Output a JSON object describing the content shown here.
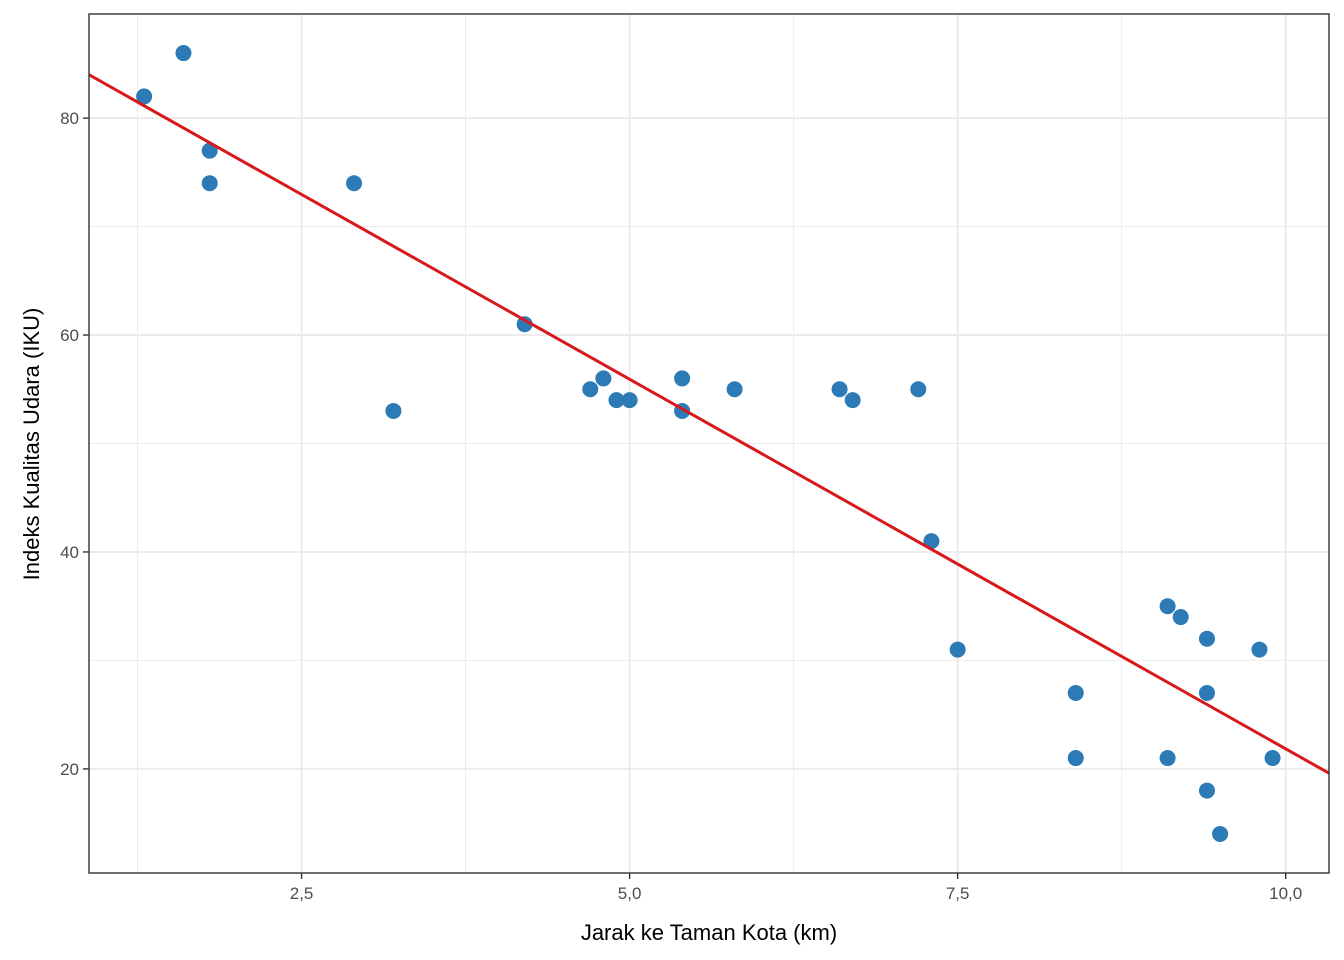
{
  "chart_data": {
    "type": "scatter",
    "title": "",
    "xlabel": "Jarak ke Taman Kota (km)",
    "ylabel": "Indeks Kualitas Udara (IKU)",
    "xlim": [
      0.88,
      10.33
    ],
    "ylim": [
      10.4,
      89.6
    ],
    "x_ticks": [
      2.5,
      5.0,
      7.5,
      10.0
    ],
    "x_tick_labels": [
      "2,5",
      "5,0",
      "7,5",
      "10,0"
    ],
    "y_ticks": [
      20,
      40,
      60,
      80
    ],
    "y_tick_labels": [
      "20",
      "40",
      "60",
      "80"
    ],
    "grid": true,
    "legend": "none",
    "point_color": "#2c7bb6",
    "line_color": "#d7191c",
    "series": [
      {
        "name": "observations",
        "type": "scatter",
        "points": [
          {
            "x": 1.3,
            "y": 82
          },
          {
            "x": 1.6,
            "y": 86
          },
          {
            "x": 1.8,
            "y": 77
          },
          {
            "x": 1.8,
            "y": 74
          },
          {
            "x": 2.9,
            "y": 74
          },
          {
            "x": 3.2,
            "y": 53
          },
          {
            "x": 4.2,
            "y": 61
          },
          {
            "x": 4.7,
            "y": 55
          },
          {
            "x": 4.8,
            "y": 56
          },
          {
            "x": 4.9,
            "y": 54
          },
          {
            "x": 5.0,
            "y": 54
          },
          {
            "x": 5.4,
            "y": 56
          },
          {
            "x": 5.4,
            "y": 53
          },
          {
            "x": 5.8,
            "y": 55
          },
          {
            "x": 6.6,
            "y": 55
          },
          {
            "x": 6.7,
            "y": 54
          },
          {
            "x": 7.2,
            "y": 55
          },
          {
            "x": 7.3,
            "y": 41
          },
          {
            "x": 7.5,
            "y": 31
          },
          {
            "x": 8.4,
            "y": 27
          },
          {
            "x": 8.4,
            "y": 21
          },
          {
            "x": 9.1,
            "y": 35
          },
          {
            "x": 9.2,
            "y": 34
          },
          {
            "x": 9.4,
            "y": 32
          },
          {
            "x": 9.4,
            "y": 27
          },
          {
            "x": 9.1,
            "y": 21
          },
          {
            "x": 9.4,
            "y": 18
          },
          {
            "x": 9.5,
            "y": 14
          },
          {
            "x": 9.8,
            "y": 31
          },
          {
            "x": 9.9,
            "y": 21
          }
        ]
      },
      {
        "name": "linear fit",
        "type": "line",
        "x": [
          0.88,
          10.33
        ],
        "y": [
          84.0,
          19.6
        ]
      }
    ]
  }
}
